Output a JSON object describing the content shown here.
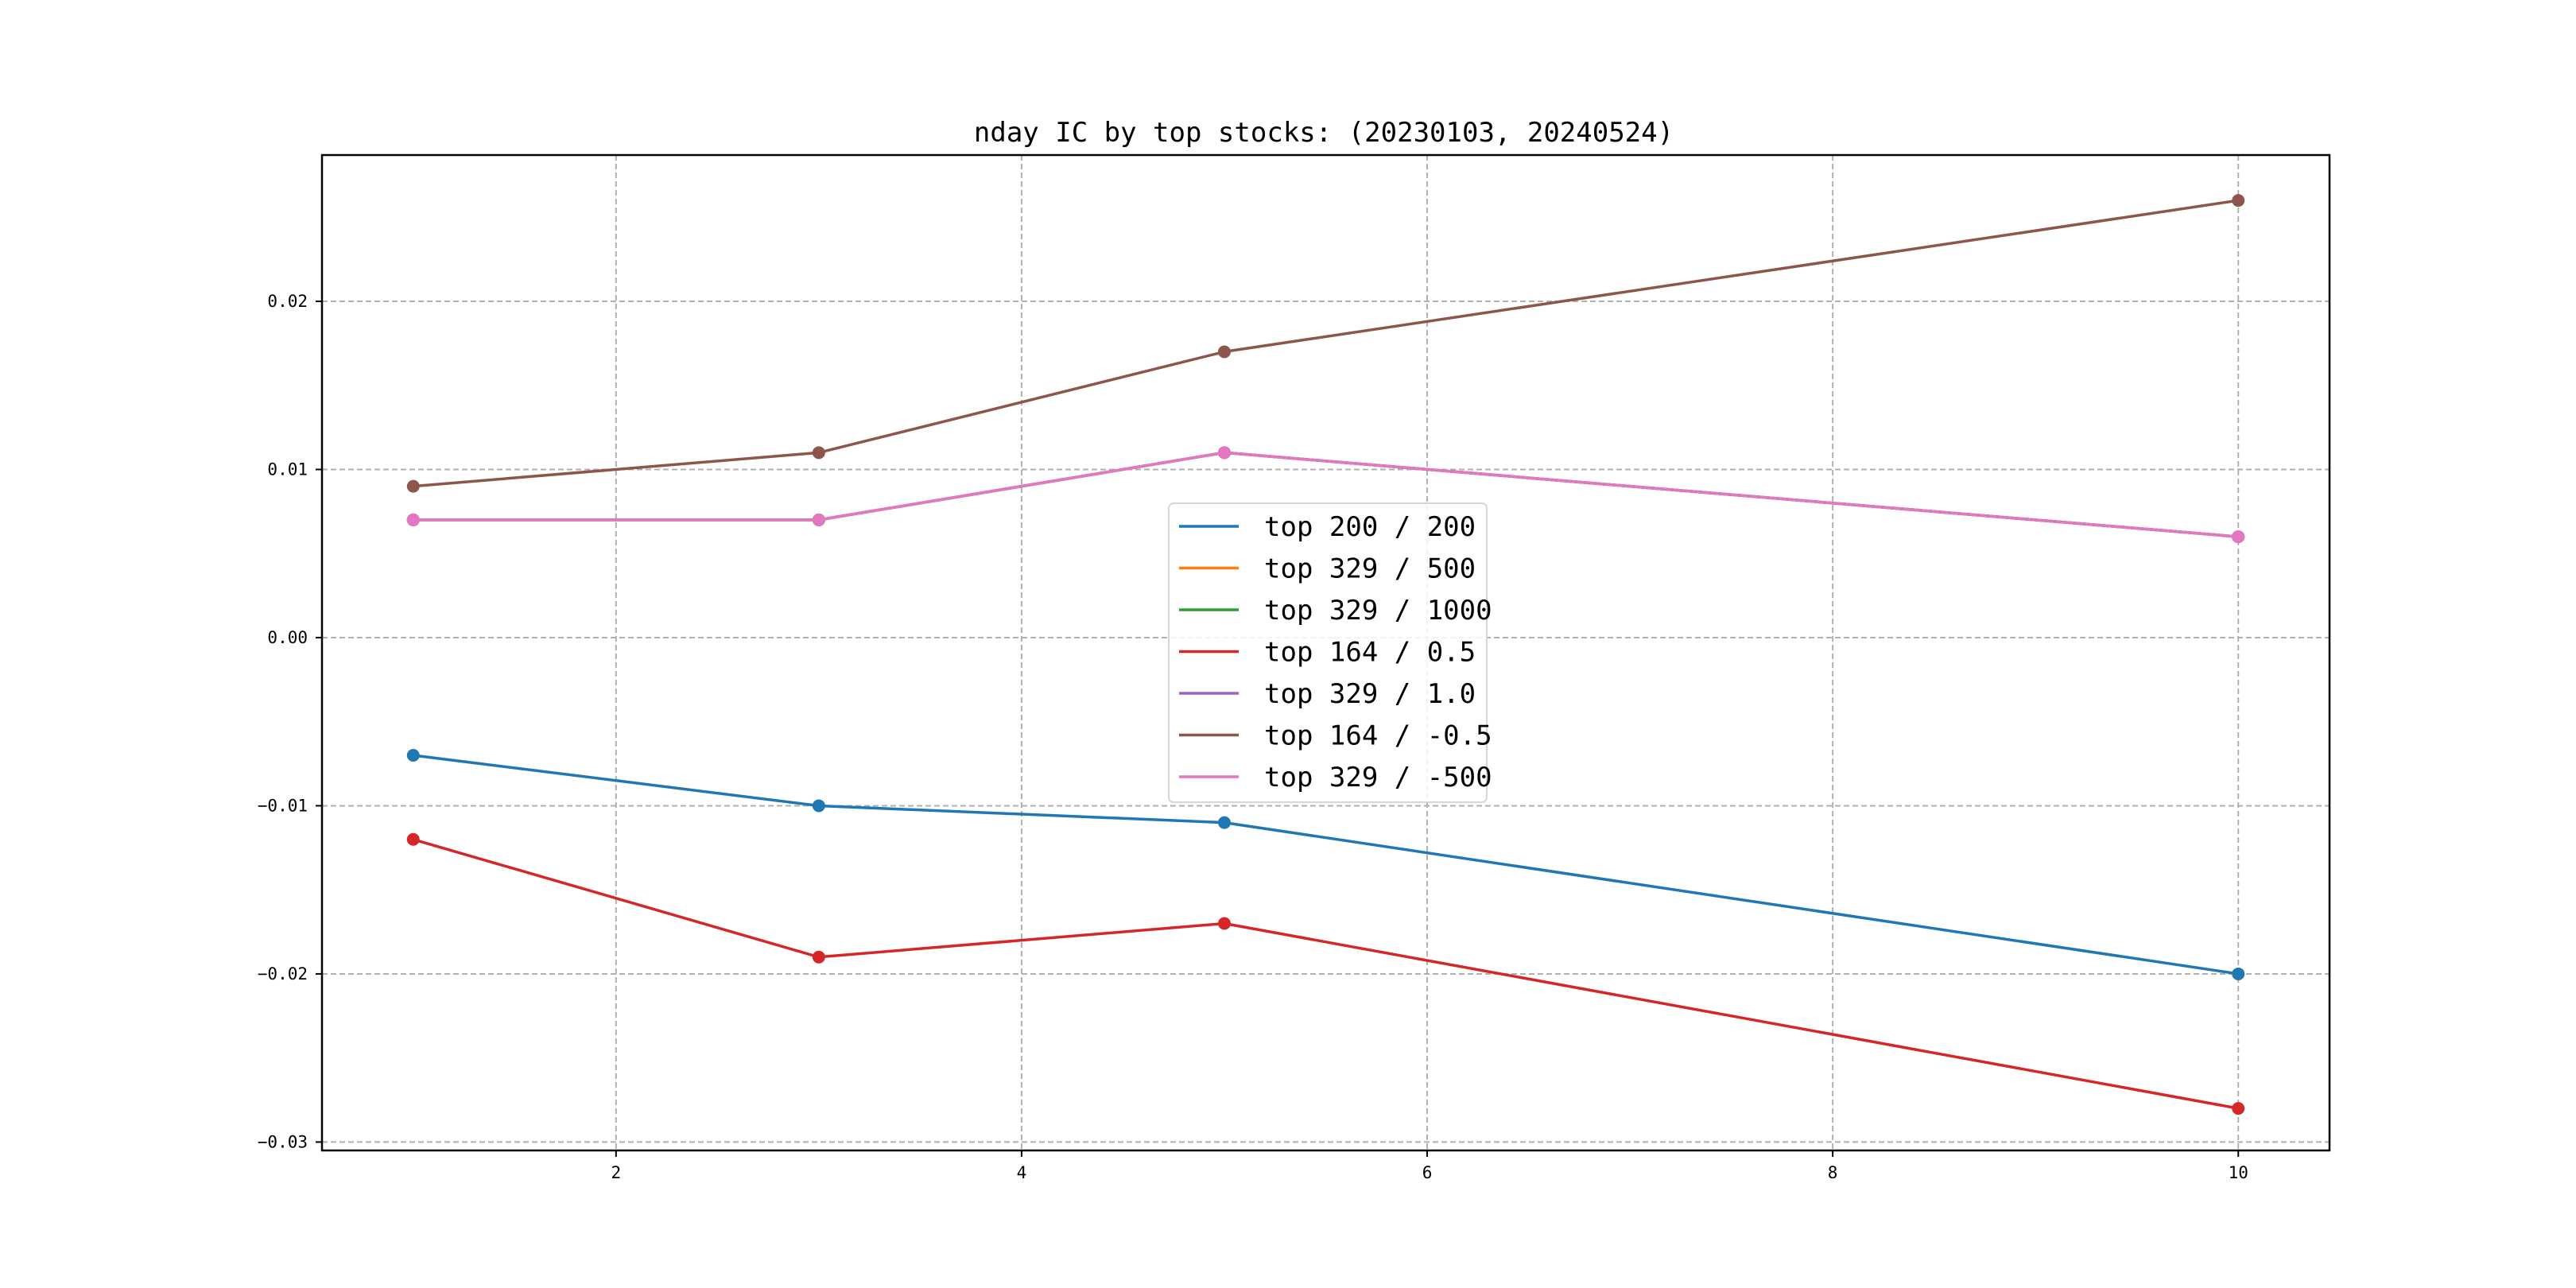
{
  "chart_data": {
    "type": "line",
    "title": "nday IC by top stocks: (20230103, 20240524)",
    "xlabel": "",
    "ylabel": "",
    "x": [
      1,
      3,
      5,
      10
    ],
    "xlim": [
      0.55,
      10.45
    ],
    "ylim": [
      -0.0305,
      0.0287
    ],
    "xticks": [
      2,
      4,
      6,
      8,
      10
    ],
    "xtick_labels": [
      "2",
      "4",
      "6",
      "8",
      "10"
    ],
    "yticks": [
      -0.03,
      -0.02,
      -0.01,
      0.0,
      0.01,
      0.02
    ],
    "ytick_labels": [
      "−0.03",
      "−0.02",
      "−0.01",
      "0.00",
      "0.01",
      "0.02"
    ],
    "grid": true,
    "legend_position": "center",
    "series": [
      {
        "name": "top 200 / 200",
        "color": "#1f77b4",
        "values": [
          -0.007,
          -0.01,
          -0.011,
          -0.02
        ]
      },
      {
        "name": "top 329 / 500",
        "color": "#ff7f0e",
        "values": [
          0.007,
          0.007,
          0.011,
          0.006
        ]
      },
      {
        "name": "top 329 / 1000",
        "color": "#2ca02c",
        "values": [
          0.007,
          0.007,
          0.011,
          0.006
        ]
      },
      {
        "name": "top 164 / 0.5",
        "color": "#d62728",
        "values": [
          -0.012,
          -0.019,
          -0.017,
          -0.028
        ]
      },
      {
        "name": "top 329 / 1.0",
        "color": "#9467bd",
        "values": [
          0.007,
          0.007,
          0.011,
          0.006
        ]
      },
      {
        "name": "top 164 / -0.5",
        "color": "#8c564b",
        "values": [
          0.009,
          0.011,
          0.017,
          0.026
        ]
      },
      {
        "name": "top 329 / -500",
        "color": "#e377c2",
        "values": [
          0.007,
          0.007,
          0.011,
          0.006
        ]
      }
    ]
  }
}
